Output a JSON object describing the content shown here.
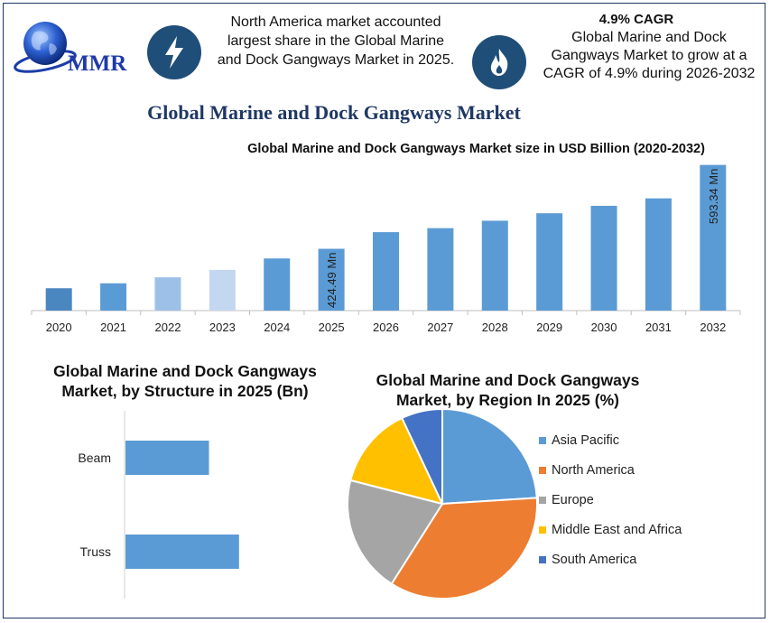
{
  "header": {
    "logo_text": "MMR",
    "info_left": "North America market accounted largest share in the Global Marine and Dock Gangways Market in 2025.",
    "cagr_title": "4.9% CAGR",
    "info_right": "Global Marine and Dock Gangways Market to grow at a CAGR of 4.9% during 2026-2032",
    "left_icon": "lightning-bolt-icon",
    "right_icon": "flame-icon"
  },
  "main_title": "Global Marine and Dock Gangways Market",
  "chart_data": [
    {
      "type": "bar",
      "title": "Global Marine and Dock Gangways Market size in USD Billion (2020-2032)",
      "categories": [
        "2020",
        "2021",
        "2022",
        "2023",
        "2024",
        "2025",
        "2026",
        "2027",
        "2028",
        "2029",
        "2030",
        "2031",
        "2032"
      ],
      "values": [
        345,
        355,
        367,
        382,
        405,
        424.49,
        458,
        466,
        481,
        496,
        511,
        526,
        593.34
      ],
      "colors": [
        "#4a86c0",
        "#5b9bd5",
        "#9dc1e6",
        "#c3d7f0",
        "#5b9bd5",
        "#5b9bd5",
        "#5b9bd5",
        "#5b9bd5",
        "#5b9bd5",
        "#5b9bd5",
        "#5b9bd5",
        "#5b9bd5",
        "#5b9bd5"
      ],
      "data_labels": {
        "2025": "424.49 Mn",
        "2032": "593.34 Mn"
      },
      "ylim": [
        300,
        600
      ],
      "grid": false
    },
    {
      "type": "bar",
      "orientation": "horizontal",
      "title": "Global Marine and Dock Gangways Market, by Structure in 2025 (Bn)",
      "categories": [
        "Beam",
        "Truss"
      ],
      "values": [
        0.25,
        0.34
      ],
      "xlim": [
        0,
        0.6
      ],
      "color": "#5b9bd5"
    },
    {
      "type": "pie",
      "title": "Global Marine and Dock Gangways Market, by Region In 2025 (%)",
      "labels": [
        "Asia Pacific",
        "North America",
        "Europe",
        "Middle East and Africa",
        "South America"
      ],
      "values": [
        24,
        35,
        20,
        14,
        7
      ],
      "colors": [
        "#5b9bd5",
        "#ed7d31",
        "#a5a5a5",
        "#ffc000",
        "#4472c4"
      ],
      "legend": "right"
    }
  ]
}
